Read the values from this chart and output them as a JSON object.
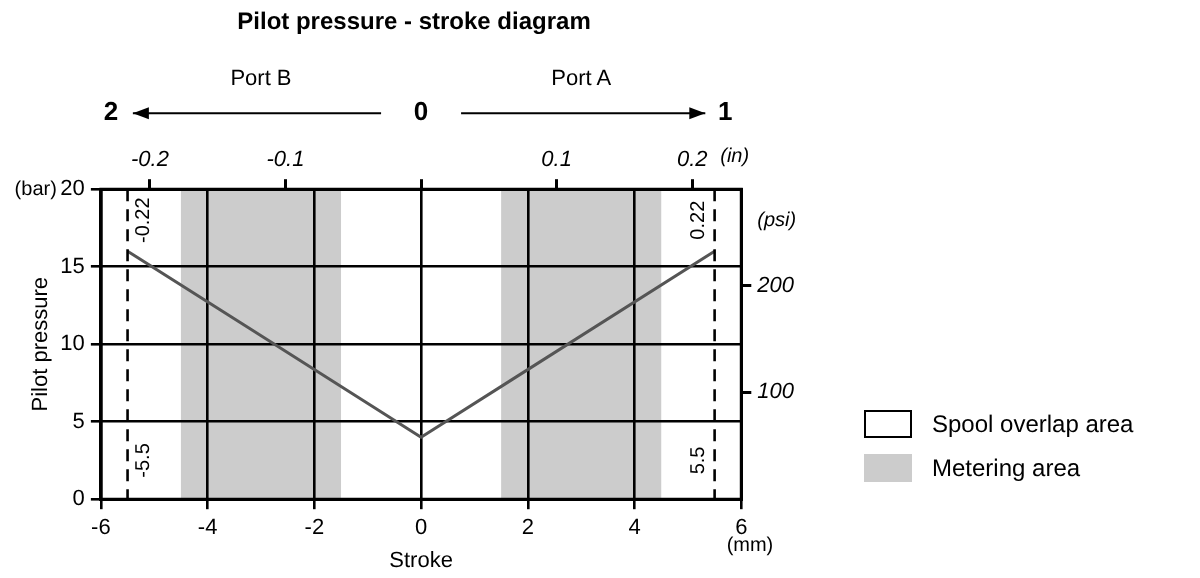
{
  "chart_data": {
    "type": "line",
    "title": "Pilot pressure - stroke diagram",
    "xlabel": "Stroke",
    "ylabel": "Pilot pressure",
    "x2label": "(in)",
    "y2label": "(psi)",
    "annotations": [
      "(bar)",
      "(mm)",
      "Port B",
      "Port A",
      "2",
      "0",
      "1",
      "Spool overlap area",
      "Metering area",
      {
        "text": "-0.22",
        "x": -5.5,
        "y": 18
      },
      {
        "text": "0.22",
        "x": 5.5,
        "y": 18
      }
    ],
    "series": [
      {
        "x": [
          -5.5,
          0,
          5.5
        ],
        "values": [
          16,
          4,
          16
        ],
        "color": "#555555"
      }
    ],
    "xlim": [
      -6,
      6
    ],
    "xticks": [
      -6,
      -4,
      -2,
      0,
      2,
      4,
      6
    ],
    "x2lim": [
      -0.2362,
      0.2362
    ],
    "x2ticks": [
      -0.2,
      -0.1,
      {
        "value": 0,
        "label": null
      },
      0.1,
      0.2
    ],
    "ylim": [
      0,
      20
    ],
    "yticks": [
      0,
      5,
      10,
      15,
      20
    ],
    "y2lim": [
      0,
      290
    ],
    "y2ticks": [
      100,
      200
    ],
    "bands": [
      {
        "axis": "x",
        "from": -4.5,
        "to": -1.5,
        "label": null,
        "color": "#cccccc"
      },
      {
        "axis": "x",
        "from": 1.5,
        "to": 4.5,
        "label": null,
        "color": "#cccccc"
      }
    ],
    "ref_lines": [
      {
        "axis": "x",
        "value": -5.5,
        "label": "-5.5",
        "line_style": "dashed",
        "color": "#000000"
      },
      {
        "axis": "x",
        "value": 5.5,
        "label": "5.5",
        "line_style": "dashed",
        "color": "#000000"
      }
    ],
    "grid": true,
    "legend": "right",
    "marker": "none",
    "line_style": "solid"
  }
}
